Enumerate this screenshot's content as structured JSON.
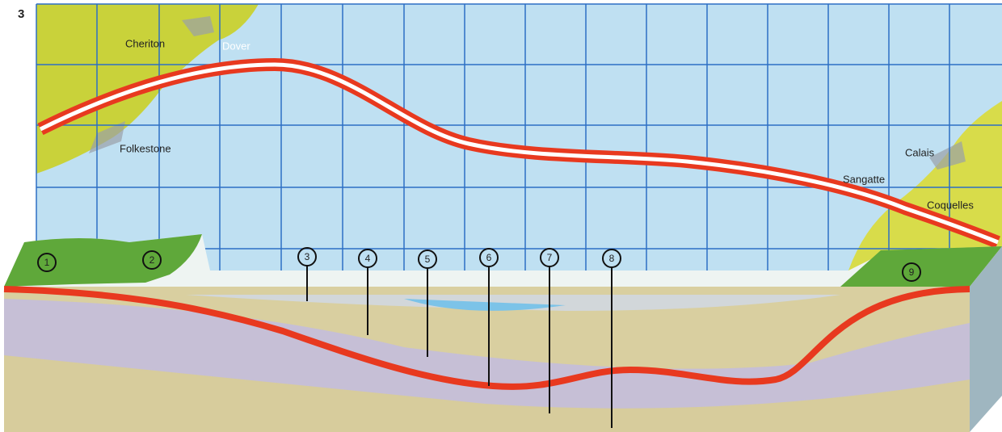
{
  "figure_number": "3",
  "places": [
    {
      "label": "Cheriton"
    },
    {
      "label": "Dover"
    },
    {
      "label": "Folkestone"
    },
    {
      "label": "Calais"
    },
    {
      "label": "Sangatte"
    },
    {
      "label": "Coquelles"
    }
  ],
  "markers": [
    {
      "label": "1"
    },
    {
      "label": "2"
    },
    {
      "label": "3"
    },
    {
      "label": "4"
    },
    {
      "label": "5"
    },
    {
      "label": "6"
    },
    {
      "label": "7"
    },
    {
      "label": "8"
    },
    {
      "label": "9"
    }
  ]
}
